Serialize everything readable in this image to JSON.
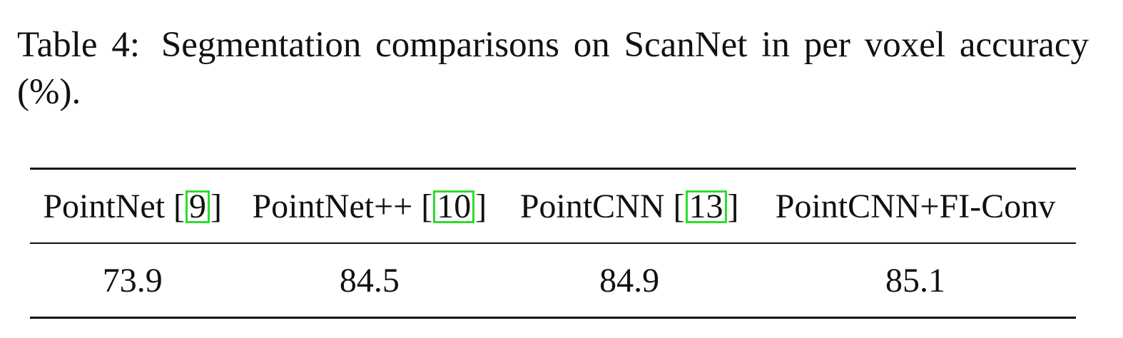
{
  "caption": {
    "label": "Table 4:",
    "text": "Segmentation comparisons on ScanNet in per voxel accuracy (%)."
  },
  "table": {
    "columns": [
      {
        "name": "PointNet",
        "citation": "9"
      },
      {
        "name": "PointNet++",
        "citation": "10"
      },
      {
        "name": "PointCNN",
        "citation": "13"
      },
      {
        "name": "PointCNN+FI-Conv",
        "citation": ""
      }
    ],
    "rows": [
      [
        "73.9",
        "84.5",
        "84.9",
        "85.1"
      ]
    ]
  },
  "colors": {
    "citation_box": "#2edc2e",
    "text": "#111111",
    "rule": "#111111"
  }
}
